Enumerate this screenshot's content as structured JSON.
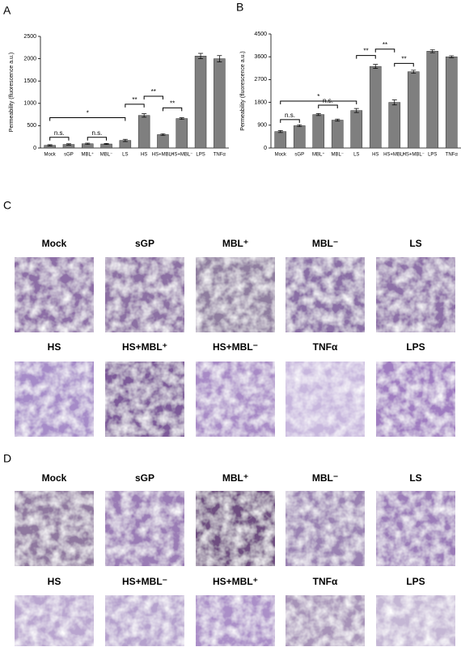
{
  "chart_data": [
    {
      "type": "bar",
      "panel": "A",
      "y_label": "Permeability (fluorescence a.u.)",
      "color": "#7f7f7f",
      "categories": [
        "Mock",
        "sGP",
        "MBL⁺",
        "MBL⁻",
        "LS",
        "HS",
        "HS+MBL⁺",
        "HS+MBL⁻",
        "LPS",
        "TNFα"
      ],
      "values": [
        60,
        80,
        95,
        90,
        170,
        730,
        300,
        660,
        2060,
        2000
      ],
      "errors": [
        15,
        15,
        15,
        12,
        25,
        40,
        20,
        20,
        60,
        70
      ],
      "ylim": [
        0,
        2500
      ],
      "yticks": [
        0,
        500,
        1000,
        1500,
        2000,
        2500
      ],
      "annotations": [
        "n.s.",
        "n.s.",
        "*",
        "**",
        "**",
        "**"
      ]
    },
    {
      "type": "bar",
      "panel": "B",
      "y_label": "Permeability (fluorescence a.u.)",
      "color": "#7f7f7f",
      "categories": [
        "Mock",
        "sGP",
        "MBL⁺",
        "MBL⁻",
        "LS",
        "HS",
        "HS+MBL⁺",
        "HS+MBL⁻",
        "LPS",
        "TNFα"
      ],
      "values": [
        650,
        880,
        1320,
        1100,
        1480,
        3220,
        1800,
        3010,
        3820,
        3600
      ],
      "errors": [
        40,
        40,
        40,
        40,
        80,
        80,
        100,
        60,
        60,
        40
      ],
      "ylim": [
        0,
        4500
      ],
      "yticks": [
        0,
        900,
        1800,
        2700,
        3600,
        4500
      ],
      "annotations": [
        "n.s.",
        "n.s.",
        "*",
        "**",
        "**",
        "**"
      ]
    }
  ],
  "panels": [
    {
      "letter": "C",
      "images": [
        {
          "label": "Mock",
          "color": "#8d6ea6"
        },
        {
          "label": "sGP",
          "color": "#8c6fa3"
        },
        {
          "label": "MBL⁺",
          "color": "#8f7d9f"
        },
        {
          "label": "MBL⁻",
          "color": "#8a6ea5"
        },
        {
          "label": "LS",
          "color": "#8d6fa7"
        },
        {
          "label": "HS",
          "color": "#a68bc8"
        },
        {
          "label": "HS+MBL⁺",
          "color": "#7d5a99"
        },
        {
          "label": "HS+MBL⁻",
          "color": "#a88ac6"
        },
        {
          "label": "TNFα",
          "color": "#c7b6dd"
        },
        {
          "label": "LPS",
          "color": "#9f7bc0"
        }
      ]
    },
    {
      "letter": "D",
      "images": [
        {
          "label": "Mock",
          "color": "#8f789f"
        },
        {
          "label": "sGP",
          "color": "#9a7bb5"
        },
        {
          "label": "MBL⁺",
          "color": "#6e4d80"
        },
        {
          "label": "MBL⁻",
          "color": "#9a82b2"
        },
        {
          "label": "LS",
          "color": "#9b7cb8"
        },
        {
          "label": "HS",
          "color": "#b9a5cf"
        },
        {
          "label": "HS+MBL⁻",
          "color": "#b5a1cd"
        },
        {
          "label": "HS+MBL⁺",
          "color": "#ab8fc8"
        },
        {
          "label": "TNFα",
          "color": "#a793b8"
        },
        {
          "label": "LPS",
          "color": "#c4b6d4"
        }
      ]
    }
  ]
}
